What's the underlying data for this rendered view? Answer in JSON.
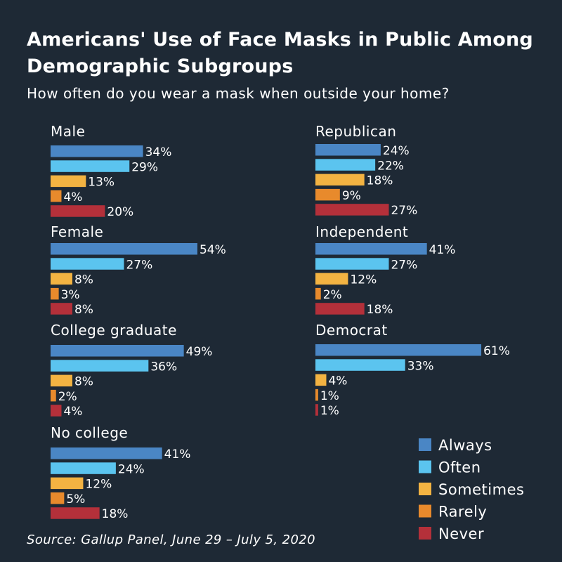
{
  "title": "Americans' Use of Face Masks in Public Among Demographic Subgroups",
  "subtitle": "How often do you wear a mask when outside your home?",
  "source": "Source: Gallup Panel, June 29 – July 5, 2020",
  "chart_data": {
    "type": "bar",
    "orientation": "horizontal",
    "value_format": "percent",
    "series_names": [
      "Always",
      "Often",
      "Sometimes",
      "Rarely",
      "Never"
    ],
    "colors": [
      "#4a86c5",
      "#5bc4ef",
      "#f3b342",
      "#e88a2c",
      "#b4303a"
    ],
    "legend_position": "bottom-right",
    "grid": false,
    "groups": [
      {
        "name": "Male",
        "values": [
          34,
          29,
          13,
          4,
          20
        ]
      },
      {
        "name": "Female",
        "values": [
          54,
          27,
          8,
          3,
          8
        ]
      },
      {
        "name": "College graduate",
        "values": [
          49,
          36,
          8,
          2,
          4
        ]
      },
      {
        "name": "No college",
        "values": [
          41,
          24,
          12,
          5,
          18
        ]
      },
      {
        "name": "Republican",
        "values": [
          24,
          22,
          18,
          9,
          27
        ]
      },
      {
        "name": "Independent",
        "values": [
          41,
          27,
          12,
          2,
          18
        ]
      },
      {
        "name": "Democrat",
        "values": [
          61,
          33,
          4,
          1,
          1
        ]
      }
    ]
  }
}
